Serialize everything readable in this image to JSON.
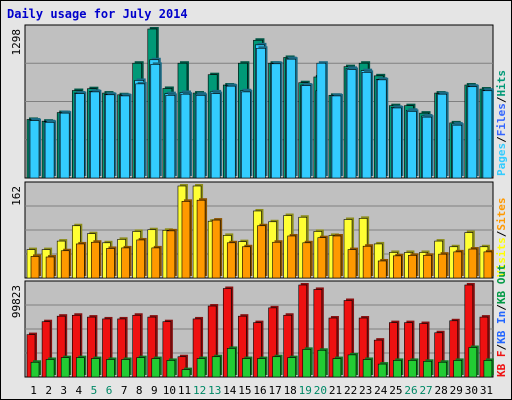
{
  "title": "Daily usage for July 2014",
  "colors": {
    "background": "#e5e5e5",
    "panel": "#c0c0c0",
    "title": "#0000cc",
    "pages": "#33ccff",
    "pages_side": "#1a6b85",
    "hits": "#009977",
    "hits_side": "#005544",
    "visits": "#ffff33",
    "visits_side": "#8c8c1a",
    "sites": "#ff9900",
    "sites_side": "#8c5400",
    "kbout": "#ee1111",
    "kbout_side": "#881111",
    "kbin": "#22cc33",
    "kbin_side": "#117722",
    "label_pages": "#33ccff",
    "label_files": "#3366ff",
    "label_hits": "#009977",
    "label_visits": "#ffff00",
    "label_sites": "#ff9900",
    "label_kbout": "#009944",
    "label_kbin": "#2266ff",
    "label_kbf": "#ee1111",
    "weekend": "#008866",
    "weekday": "#000000"
  },
  "chart_data": [
    {
      "type": "bar",
      "panel": "hits-files-pages",
      "ylabel_max": "1298",
      "ymax": 1298,
      "legend": [
        "Pages",
        "Files",
        "Hits"
      ],
      "legend_sep": "/",
      "categories": [
        "1",
        "2",
        "3",
        "4",
        "5",
        "6",
        "7",
        "8",
        "9",
        "10",
        "11",
        "12",
        "13",
        "14",
        "15",
        "16",
        "17",
        "18",
        "19",
        "20",
        "21",
        "22",
        "23",
        "24",
        "25",
        "26",
        "27",
        "28",
        "29",
        "30",
        "31"
      ],
      "weekend_days": [
        "5",
        "6",
        "12",
        "13",
        "19",
        "20",
        "26",
        "27"
      ],
      "series": [
        {
          "name": "Hits",
          "values": [
            510,
            495,
            570,
            762,
            778,
            740,
            725,
            1000,
            1298,
            780,
            1000,
            740,
            900,
            810,
            1000,
            1200,
            1000,
            1050,
            830,
            880,
            720,
            970,
            1000,
            890,
            630,
            630,
            565,
            740,
            480,
            810,
            775
          ]
        },
        {
          "name": "Files",
          "values": [
            505,
            490,
            570,
            740,
            755,
            730,
            720,
            850,
            1030,
            735,
            745,
            730,
            750,
            805,
            760,
            1160,
            1000,
            1040,
            810,
            760,
            720,
            955,
            935,
            860,
            615,
            590,
            540,
            735,
            470,
            800,
            765
          ]
        },
        {
          "name": "Pages",
          "values": [
            500,
            485,
            565,
            735,
            750,
            725,
            715,
            820,
            990,
            720,
            730,
            720,
            735,
            800,
            750,
            1130,
            995,
            1035,
            805,
            1000,
            715,
            945,
            920,
            855,
            610,
            580,
            530,
            730,
            460,
            795,
            760
          ]
        }
      ]
    },
    {
      "type": "bar",
      "panel": "visits-sites",
      "ylabel_max": "162",
      "ymax": 162,
      "legend": [
        "Visits",
        "Sites"
      ],
      "legend_sep": "/",
      "categories": [
        "1",
        "2",
        "3",
        "4",
        "5",
        "6",
        "7",
        "8",
        "9",
        "10",
        "11",
        "12",
        "13",
        "14",
        "15",
        "16",
        "17",
        "18",
        "19",
        "20",
        "21",
        "22",
        "23",
        "24",
        "25",
        "26",
        "27",
        "28",
        "29",
        "30",
        "31"
      ],
      "series": [
        {
          "name": "Visits",
          "values": [
            50,
            50,
            65,
            92,
            78,
            62,
            68,
            82,
            85,
            84,
            162,
            162,
            100,
            75,
            64,
            118,
            99,
            110,
            107,
            82,
            75,
            103,
            105,
            60,
            45,
            45,
            45,
            65,
            55,
            80,
            55
          ]
        },
        {
          "name": "Sites",
          "values": [
            38,
            37,
            48,
            60,
            63,
            52,
            53,
            67,
            53,
            83,
            135,
            137,
            102,
            62,
            55,
            92,
            63,
            74,
            62,
            71,
            74,
            50,
            56,
            30,
            39,
            40,
            40,
            42,
            46,
            51,
            46
          ]
        }
      ]
    },
    {
      "type": "bar",
      "panel": "kbytes",
      "ylabel_max": "99823",
      "ymax": 99823,
      "legend": [
        "KB F",
        "KB In",
        "KB Out"
      ],
      "legend_sep": "/",
      "categories": [
        "1",
        "2",
        "3",
        "4",
        "5",
        "6",
        "7",
        "8",
        "9",
        "10",
        "11",
        "12",
        "13",
        "14",
        "15",
        "16",
        "17",
        "18",
        "19",
        "20",
        "21",
        "22",
        "23",
        "24",
        "25",
        "26",
        "27",
        "28",
        "29",
        "30",
        "31"
      ],
      "series": [
        {
          "name": "KB Out",
          "values": [
            46000,
            60000,
            66000,
            67000,
            65000,
            63000,
            63000,
            67000,
            65000,
            60000,
            22000,
            63000,
            77000,
            96000,
            66000,
            59000,
            75000,
            67000,
            99823,
            95000,
            64000,
            83000,
            64000,
            40000,
            59000,
            59000,
            58000,
            48000,
            61000,
            100000,
            65000
          ]
        },
        {
          "name": "KB In",
          "values": [
            16000,
            19000,
            21000,
            21000,
            20000,
            19000,
            19000,
            21000,
            20000,
            18000,
            8000,
            20000,
            22000,
            31000,
            20000,
            20000,
            22000,
            21000,
            30000,
            29000,
            20000,
            24000,
            19000,
            14000,
            18000,
            18000,
            17000,
            16000,
            18000,
            32000,
            18000
          ]
        }
      ]
    }
  ]
}
